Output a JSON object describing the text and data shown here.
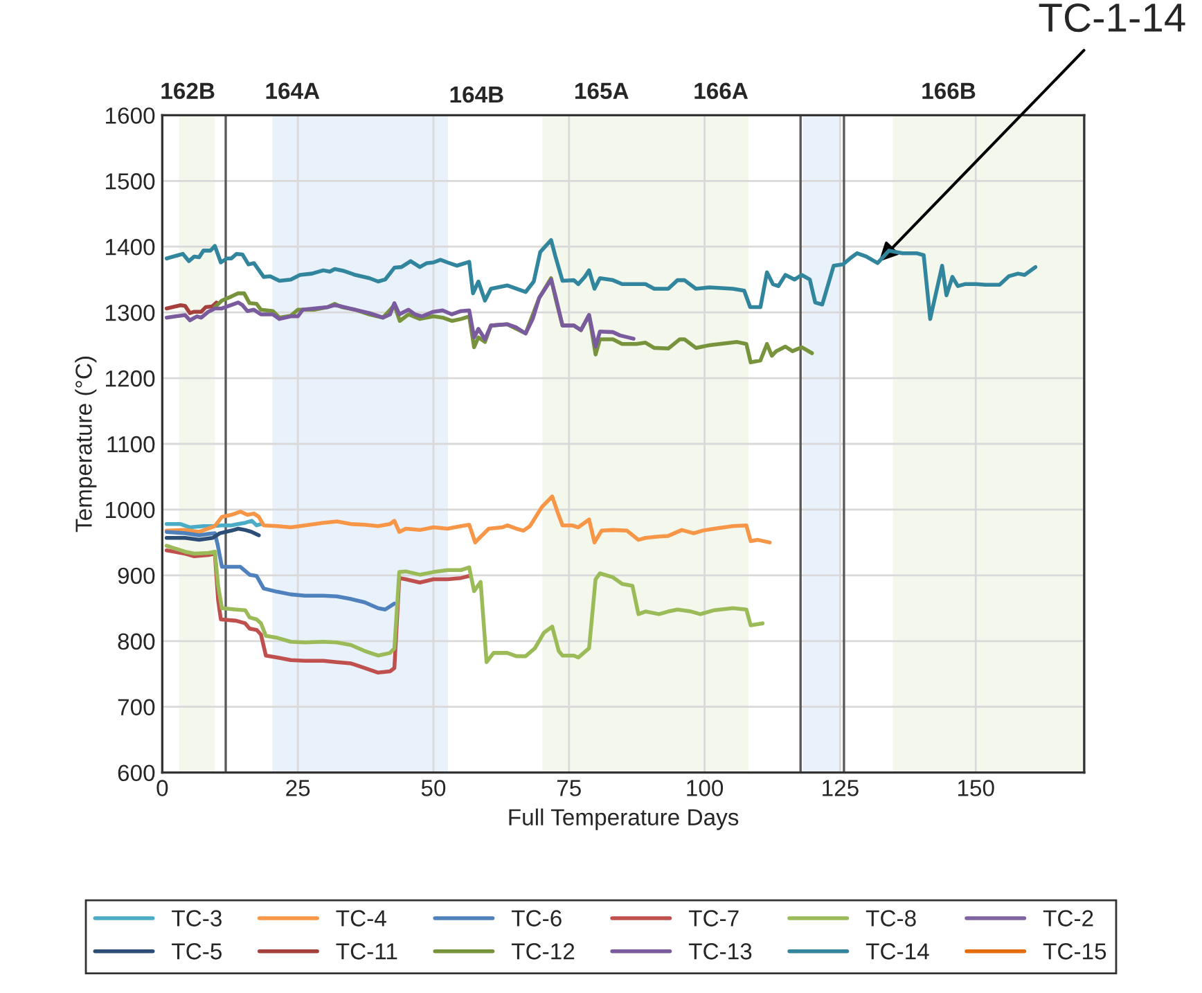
{
  "chart_data": {
    "type": "line",
    "xlabel": "Full Temperature Days",
    "ylabel": "Temperature (°C)",
    "xlim": [
      0,
      170
    ],
    "xticks": [
      0,
      25,
      50,
      75,
      100,
      125,
      150
    ],
    "ylim": [
      600,
      1600
    ],
    "yticks": [
      600,
      700,
      800,
      900,
      1000,
      1100,
      1200,
      1300,
      1400,
      1500,
      1600
    ],
    "grid": true,
    "legend": "bottom",
    "marker": "none",
    "line_style": "solid",
    "bands": [
      {
        "axis": "x",
        "from": 3.1,
        "to": 9.7,
        "color": "#f3f7ec"
      },
      {
        "axis": "x",
        "from": 20.3,
        "to": 52.7,
        "color": "#e9f1fb"
      },
      {
        "axis": "x",
        "from": 70.1,
        "to": 108.1,
        "color": "#f3f7ec"
      },
      {
        "axis": "x",
        "from": 118.1,
        "to": 125.1,
        "color": "#e9f1fb"
      },
      {
        "axis": "x",
        "from": 134.7,
        "to": 170,
        "color": "#f3f7ec"
      }
    ],
    "ref_lines": [
      {
        "axis": "x",
        "value": 11.7,
        "color": "#595959"
      },
      {
        "axis": "x",
        "value": 117.7,
        "color": "#595959"
      },
      {
        "axis": "x",
        "value": 125.7,
        "color": "#595959"
      }
    ],
    "annotations": [
      {
        "text": "162B",
        "x": 4.7,
        "y": 1600
      },
      {
        "text": "164A",
        "x": 24,
        "y": 1600
      },
      "164B",
      {
        "text": "165A",
        "x": 81,
        "y": 1600
      },
      {
        "text": "166A",
        "x": 103,
        "y": 1600
      },
      {
        "text": "166B",
        "x": 145,
        "y": 1600
      },
      {
        "text": "TC-1-14",
        "x": 131.9,
        "y": 1375
      }
    ],
    "series": [
      {
        "name": "TC-3",
        "color": "#4bacc6",
        "x": [
          0.8,
          3.4,
          5.1,
          7.6,
          9.3,
          11.0,
          12.7,
          14.0,
          15.3,
          16.5,
          17.4,
          18.2
        ],
        "values": [
          978,
          978,
          973,
          975,
          975,
          976,
          976,
          978,
          980,
          983,
          976,
          978
        ]
      },
      {
        "name": "TC-4",
        "color": "#f79646",
        "x": [
          0.8,
          4.2,
          6.8,
          9.7,
          11.0,
          12.7,
          14.4,
          15.7,
          16.9,
          17.8,
          18.7,
          21.2,
          23.7,
          26.3,
          29.7,
          32.2,
          34.8,
          37.3,
          39.8,
          42.0,
          42.8,
          43.7,
          44.9,
          47.5,
          50.0,
          52.6,
          55.1,
          56.6,
          57.7,
          58.5,
          60.2,
          62.7,
          63.6,
          65.3,
          66.6,
          67.8,
          70.0,
          71.9,
          72.9,
          73.8,
          75.5,
          76.7,
          78.7,
          79.7,
          81.0,
          83.1,
          85.7,
          87.8,
          89.1,
          91.6,
          93.3,
          95.8,
          98.0,
          99.6,
          101.8,
          105.2,
          107.7,
          108.5,
          109.8,
          112.0
        ],
        "values": [
          968,
          969,
          966,
          975,
          989,
          992,
          997,
          992,
          994,
          989,
          976,
          975,
          973,
          976,
          980,
          982,
          978,
          977,
          975,
          978,
          983,
          966,
          971,
          969,
          973,
          971,
          975,
          977,
          950,
          957,
          971,
          973,
          976,
          971,
          968,
          975,
          1004,
          1020,
          996,
          976,
          976,
          973,
          985,
          950,
          968,
          969,
          968,
          954,
          957,
          959,
          960,
          969,
          964,
          968,
          971,
          975,
          976,
          952,
          954,
          950
        ]
      },
      {
        "name": "TC-6",
        "color": "#4f81bd",
        "x": [
          0.8,
          4.2,
          6.8,
          8.5,
          9.7,
          10.2,
          11.0,
          14.4,
          16.1,
          17.4,
          18.7,
          21.2,
          23.7,
          26.3,
          29.7,
          32.2,
          34.8,
          37.3,
          39.8,
          41.1,
          42.8
        ],
        "values": [
          966,
          964,
          961,
          963,
          964,
          947,
          913,
          913,
          901,
          899,
          880,
          875,
          871,
          869,
          869,
          868,
          864,
          859,
          850,
          848,
          857
        ]
      },
      {
        "name": "TC-7",
        "color": "#c0504d",
        "x": [
          0.8,
          4.2,
          5.9,
          8.5,
          9.7,
          10.3,
          10.8,
          13.6,
          15.3,
          16.1,
          17.4,
          18.2,
          19.1,
          21.2,
          23.7,
          26.3,
          29.7,
          32.2,
          34.8,
          37.3,
          39.8,
          42.0,
          42.8,
          43.7,
          44.9,
          47.5,
          50.0,
          52.6,
          55.1,
          56.6
        ],
        "values": [
          938,
          933,
          929,
          931,
          933,
          862,
          833,
          831,
          827,
          819,
          817,
          810,
          778,
          775,
          771,
          770,
          770,
          768,
          766,
          759,
          752,
          754,
          759,
          896,
          894,
          889,
          894,
          894,
          896,
          899
        ]
      },
      {
        "name": "TC-8",
        "color": "#9bbb59",
        "x": [
          0.8,
          4.2,
          5.9,
          8.5,
          9.7,
          10.3,
          11.0,
          13.6,
          15.3,
          16.1,
          17.4,
          18.2,
          19.1,
          21.2,
          23.7,
          26.3,
          29.7,
          32.2,
          34.8,
          37.3,
          39.8,
          42.0,
          42.8,
          43.7,
          44.9,
          47.5,
          50.0,
          52.6,
          55.1,
          56.6,
          57.5,
          58.7,
          59.8,
          61.1,
          63.6,
          65.3,
          67.0,
          68.7,
          70.4,
          71.9,
          73.1,
          73.8,
          75.9,
          76.7,
          78.7,
          79.9,
          80.7,
          83.1,
          84.8,
          86.7,
          87.8,
          89.1,
          91.6,
          93.3,
          95.0,
          97.5,
          99.2,
          101.8,
          105.2,
          107.7,
          108.5,
          110.7
        ],
        "values": [
          945,
          936,
          933,
          934,
          936,
          884,
          850,
          848,
          847,
          836,
          833,
          827,
          808,
          805,
          799,
          798,
          799,
          798,
          794,
          785,
          778,
          782,
          789,
          905,
          906,
          901,
          905,
          908,
          908,
          912,
          876,
          890,
          768,
          782,
          782,
          777,
          777,
          789,
          813,
          822,
          785,
          778,
          778,
          775,
          789,
          894,
          903,
          897,
          887,
          884,
          841,
          845,
          841,
          845,
          848,
          845,
          841,
          847,
          850,
          848,
          824,
          827
        ]
      },
      {
        "name": "TC-2",
        "color": "#8064a2"
      },
      {
        "name": "TC-5",
        "color": "#2c4d75",
        "x": [
          0.8,
          4.2,
          6.8,
          9.3,
          10.6,
          12.7,
          14.0,
          15.3,
          16.5,
          17.8
        ],
        "values": [
          957,
          957,
          954,
          957,
          964,
          968,
          971,
          969,
          966,
          961
        ]
      },
      {
        "name": "TC-11",
        "color": "#a5403d",
        "x": [
          0.8,
          3.4,
          4.2,
          5.1,
          5.9,
          7.2,
          8.0,
          9.2,
          10.0
        ],
        "values": [
          1306,
          1311,
          1310,
          1299,
          1301,
          1301,
          1308,
          1309,
          1315
        ]
      },
      {
        "name": "TC-12",
        "color": "#77933c",
        "x": [
          9.7,
          11.0,
          12.7,
          14.0,
          15.1,
          16.1,
          17.4,
          18.2,
          20.4,
          21.6,
          23.7,
          25.0,
          28.0,
          30.5,
          31.8,
          33.1,
          35.6,
          38.2,
          40.7,
          42.8,
          43.8,
          45.4,
          47.5,
          50.0,
          51.7,
          53.4,
          55.1,
          56.6,
          57.5,
          58.3,
          59.5,
          60.6,
          63.6,
          67.0,
          69.5,
          71.7,
          72.5,
          73.8,
          75.9,
          77.2,
          78.7,
          79.9,
          80.7,
          83.1,
          84.8,
          87.4,
          89.1,
          90.7,
          93.3,
          95.4,
          96.3,
          98.4,
          100.9,
          106.0,
          107.7,
          108.5,
          110.3,
          111.5,
          112.4,
          113.2,
          114.9,
          116.2,
          117.9,
          119.8
        ],
        "values": [
          1308,
          1318,
          1324,
          1329,
          1329,
          1314,
          1313,
          1304,
          1302,
          1292,
          1295,
          1304,
          1304,
          1308,
          1313,
          1308,
          1304,
          1297,
          1292,
          1311,
          1287,
          1297,
          1290,
          1294,
          1292,
          1287,
          1290,
          1294,
          1247,
          1262,
          1255,
          1280,
          1282,
          1268,
          1322,
          1352,
          1322,
          1280,
          1280,
          1273,
          1296,
          1236,
          1259,
          1259,
          1252,
          1252,
          1254,
          1246,
          1245,
          1259,
          1259,
          1246,
          1250,
          1255,
          1252,
          1224,
          1227,
          1252,
          1234,
          1241,
          1248,
          1241,
          1247,
          1238
        ]
      },
      {
        "name": "TC-13",
        "color": "#7a5c9e",
        "x": [
          0.8,
          2.5,
          4.2,
          5.1,
          6.4,
          7.2,
          8.5,
          9.7,
          11.0,
          12.3,
          14.0,
          14.8,
          15.7,
          16.9,
          18.2,
          20.4,
          21.6,
          23.7,
          25.0,
          25.9,
          28.0,
          30.5,
          31.8,
          33.1,
          35.6,
          38.2,
          40.7,
          42.0,
          42.8,
          43.7,
          45.4,
          46.6,
          47.9,
          50.0,
          51.7,
          53.4,
          55.1,
          56.6,
          57.5,
          58.3,
          59.5,
          60.6,
          63.6,
          65.3,
          67.0,
          68.3,
          69.5,
          71.7,
          72.5,
          73.8,
          75.9,
          77.2,
          78.7,
          79.9,
          80.7,
          83.1,
          84.4,
          86.9
        ],
        "values": [
          1292,
          1294,
          1296,
          1288,
          1294,
          1292,
          1301,
          1306,
          1306,
          1310,
          1315,
          1311,
          1302,
          1304,
          1297,
          1297,
          1290,
          1294,
          1294,
          1304,
          1306,
          1308,
          1311,
          1309,
          1304,
          1299,
          1292,
          1297,
          1314,
          1297,
          1304,
          1297,
          1294,
          1301,
          1303,
          1297,
          1302,
          1303,
          1262,
          1275,
          1259,
          1280,
          1282,
          1277,
          1268,
          1290,
          1322,
          1350,
          1325,
          1280,
          1280,
          1273,
          1296,
          1248,
          1271,
          1270,
          1265,
          1260
        ]
      },
      {
        "name": "TC-14",
        "color": "#31859c",
        "x": [
          0.8,
          3.8,
          4.9,
          5.9,
          6.8,
          7.6,
          8.9,
          9.7,
          10.8,
          11.9,
          12.7,
          13.7,
          14.8,
          15.9,
          16.9,
          18.7,
          19.9,
          21.6,
          23.7,
          25.4,
          27.6,
          29.7,
          30.9,
          31.8,
          33.5,
          35.6,
          38.2,
          39.8,
          41.1,
          42.8,
          44.1,
          45.8,
          47.5,
          48.8,
          50.0,
          51.3,
          52.6,
          54.3,
          56.6,
          57.3,
          58.3,
          59.5,
          60.6,
          63.6,
          65.3,
          67.0,
          68.5,
          69.7,
          71.7,
          72.5,
          73.8,
          75.9,
          76.7,
          77.9,
          78.7,
          79.7,
          80.7,
          83.1,
          84.8,
          87.4,
          89.1,
          90.7,
          93.3,
          95.0,
          96.3,
          98.4,
          100.9,
          105.2,
          107.3,
          108.4,
          110.3,
          111.5,
          112.6,
          113.6,
          114.9,
          116.6,
          117.9,
          119.4,
          120.4,
          121.7,
          123.8,
          125.5,
          126.8,
          128.1,
          129.8,
          131.9,
          134.0,
          136.5,
          139.1,
          140.4,
          141.6,
          143.8,
          144.6,
          145.7,
          146.7,
          148.0,
          150.1,
          151.8,
          154.4,
          156.1,
          157.8,
          159.0,
          161.0
        ],
        "values": [
          1382,
          1389,
          1378,
          1385,
          1384,
          1394,
          1394,
          1401,
          1376,
          1382,
          1382,
          1389,
          1388,
          1373,
          1375,
          1354,
          1355,
          1348,
          1350,
          1357,
          1359,
          1364,
          1362,
          1366,
          1363,
          1357,
          1352,
          1347,
          1350,
          1368,
          1369,
          1378,
          1369,
          1375,
          1376,
          1380,
          1376,
          1371,
          1377,
          1329,
          1347,
          1318,
          1336,
          1341,
          1336,
          1331,
          1347,
          1392,
          1410,
          1385,
          1348,
          1349,
          1343,
          1354,
          1364,
          1336,
          1352,
          1349,
          1343,
          1343,
          1343,
          1336,
          1336,
          1349,
          1349,
          1336,
          1338,
          1336,
          1333,
          1308,
          1308,
          1361,
          1343,
          1340,
          1357,
          1350,
          1357,
          1350,
          1315,
          1312,
          1371,
          1373,
          1382,
          1390,
          1385,
          1375,
          1394,
          1390,
          1390,
          1387,
          1290,
          1371,
          1326,
          1354,
          1340,
          1343,
          1343,
          1342,
          1342,
          1355,
          1359,
          1357,
          1369
        ]
      },
      {
        "name": "TC-15",
        "color": "#e46c0a"
      }
    ]
  }
}
